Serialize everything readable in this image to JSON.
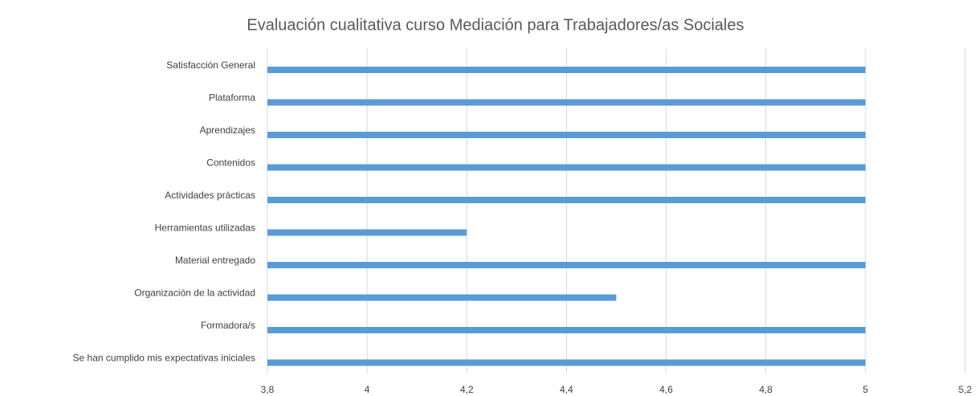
{
  "chart_data": {
    "type": "bar",
    "orientation": "horizontal",
    "title": "Evaluación cualitativa curso Mediación para Trabajadores/as Sociales",
    "categories": [
      "Satisfacción General",
      "Plataforma",
      "Aprendizajes",
      "Contenidos",
      "Actividades prácticas",
      "Herramientas utilizadas",
      "Material entregado",
      "Organización de la actividad",
      "Formadora/s",
      "Se han cumplido mis expectativas iniciales"
    ],
    "values": [
      5,
      5,
      5,
      5,
      5,
      4.2,
      5,
      4.5,
      5,
      5
    ],
    "color": "#5b9bd5",
    "xlim": [
      3.8,
      5.2
    ],
    "xticks": [
      {
        "value": 3.8,
        "label": "3,8"
      },
      4,
      {
        "value": 4.2,
        "label": "4,2"
      },
      {
        "value": 4.4,
        "label": "4,4"
      },
      {
        "value": 4.6,
        "label": "4,6"
      },
      {
        "value": 4.8,
        "label": "4,8"
      },
      5,
      {
        "value": 5.2,
        "label": "5,2"
      }
    ],
    "grid": true
  }
}
